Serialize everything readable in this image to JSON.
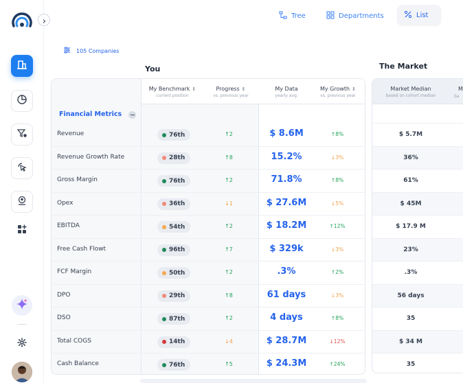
{
  "nav": {
    "tabs": [
      {
        "label": "Tree",
        "icon": "tree-icon"
      },
      {
        "label": "Departments",
        "icon": "grid-icon"
      },
      {
        "label": "List",
        "icon": "list-icon"
      }
    ],
    "active_tab": "List"
  },
  "filter": {
    "companies_label": "105 Companies"
  },
  "sections": {
    "you": "You",
    "market": "The Market"
  },
  "you_table": {
    "columns": [
      {
        "title": "My Benchmark",
        "subtitle": "current position"
      },
      {
        "title": "Progress",
        "subtitle": "vs. previous year"
      },
      {
        "title": "My Data",
        "subtitle": "yearly avg."
      },
      {
        "title": "My Growth",
        "subtitle": "vs. previous year"
      }
    ],
    "group_label": "Financial Metrics",
    "rows": [
      {
        "name": "Revenue",
        "benchmark": "76th",
        "progress": "↑2",
        "data": "$ 8.6M",
        "growth": "↑8%"
      },
      {
        "name": "Revenue Growth Rate",
        "benchmark": "28th",
        "progress": "↑8",
        "data": "15.2%",
        "growth": "↓3%"
      },
      {
        "name": "Gross Margin",
        "benchmark": "76th",
        "progress": "↑2",
        "data": "71.8%",
        "growth": "↑8%"
      },
      {
        "name": "Opex",
        "benchmark": "36th",
        "progress": "↓1",
        "data": "$ 27.6M",
        "growth": "↓5%"
      },
      {
        "name": "EBITDA",
        "benchmark": "54th",
        "progress": "↑2",
        "data": "$ 18.2M",
        "growth": "↑12%"
      },
      {
        "name": "Free Cash Flowt",
        "benchmark": "96th",
        "progress": "↑7",
        "data": "$ 329k",
        "growth": "↓3%"
      },
      {
        "name": "FCF Margin",
        "benchmark": "50th",
        "progress": "↑2",
        "data": ".3%",
        "growth": "↑2%"
      },
      {
        "name": "DPO",
        "benchmark": "29th",
        "progress": "↑8",
        "data": "61 days",
        "growth": "↓3%"
      },
      {
        "name": "DSO",
        "benchmark": "87th",
        "progress": "↑2",
        "data": "4 days",
        "growth": "↑8%"
      },
      {
        "name": "Total COGS",
        "benchmark": "14th",
        "progress": "↓4",
        "data": "$ 28.7M",
        "growth": "↓12%"
      },
      {
        "name": "Cash Balance",
        "benchmark": "76th",
        "progress": "↑5",
        "data": "$ 24.3M",
        "growth": "↑24%"
      }
    ]
  },
  "market_table": {
    "column": {
      "title": "Market Median",
      "subtitle": "based on cohort median"
    },
    "values": [
      "$ 5.7M",
      "36%",
      "61%",
      "$ 45M",
      "$ 17.9 M",
      "23%",
      ".3%",
      "56 days",
      "35",
      "$ 34 M",
      "35"
    ]
  },
  "colors": {
    "accent": "#2563eb",
    "dot_green": "#1f8a5a",
    "dot_salmon": "#f08a7a",
    "dot_orange": "#f5a94e",
    "dot_red": "#d33a3a",
    "up": "#22a35a",
    "down": "#f0a24a",
    "down_strong": "#e4544f"
  }
}
